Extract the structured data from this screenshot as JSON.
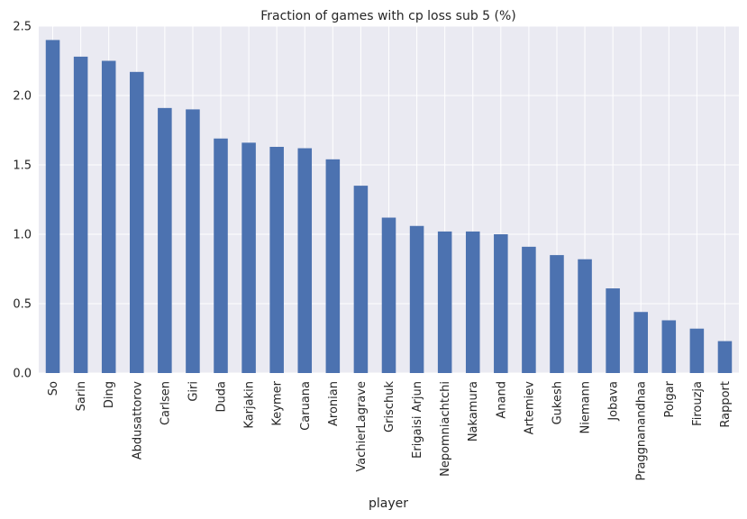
{
  "chart_data": {
    "type": "bar",
    "title": "Fraction of games with cp loss sub 5 (%)",
    "xlabel": "player",
    "ylabel": "",
    "ylim": [
      0,
      2.5
    ],
    "yticks": [
      "0.0",
      "0.5",
      "1.0",
      "1.5",
      "2.0",
      "2.5"
    ],
    "grid": true,
    "categories": [
      "So",
      "Sarin",
      "Ding",
      "Abdusattorov",
      "Carlsen",
      "Giri",
      "Duda",
      "Karjakin",
      "Keymer",
      "Caruana",
      "Aronian",
      "VachierLagrave",
      "Grischuk",
      "Erigaisi Arjun",
      "Nepomniachtchi",
      "Nakamura",
      "Anand",
      "Artemiev",
      "Gukesh",
      "Niemann",
      "Jobava",
      "Praggnanandhaa",
      "Polgar",
      "Firouzja",
      "Rapport"
    ],
    "values": [
      2.4,
      2.28,
      2.25,
      2.17,
      1.91,
      1.9,
      1.69,
      1.66,
      1.63,
      1.62,
      1.54,
      1.35,
      1.12,
      1.06,
      1.02,
      1.02,
      1.0,
      0.91,
      0.85,
      0.82,
      0.61,
      0.44,
      0.38,
      0.32,
      0.23
    ],
    "bar_color": "#4c72b0",
    "background_color": "#eaeaf2",
    "grid_color": "#ffffff"
  }
}
